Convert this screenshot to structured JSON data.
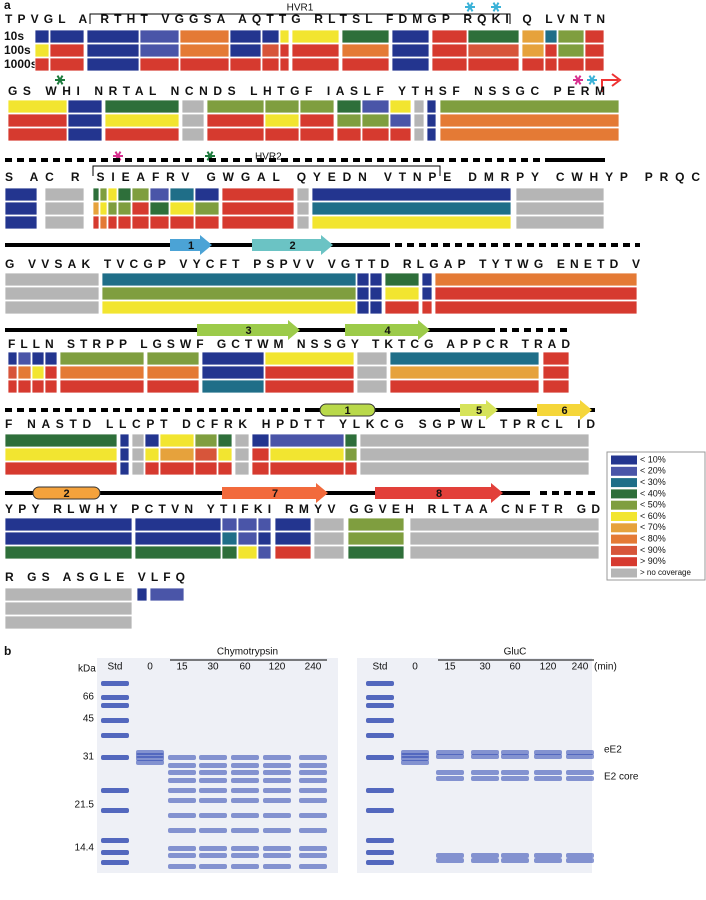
{
  "panel_a": {
    "label": "a",
    "hvr1": "HVR1",
    "hvr2": "HVR2",
    "time_labels": [
      "10s",
      "100s",
      "1000s"
    ],
    "sequence_rows": [
      "TPVGL A RTHT VGGSA AQTTG RLTSL FDMGP RQKI Q LVNTN",
      "GS WHI NRTAL NCNDS LHTGF IASLF YTHSF NSSGC PERM",
      "S AC R SIEAFRV GWGAL QYEDN VTNPE DMRPY CWHYP PRQC",
      "G VVSAK TVCGP VYCFT PSPVV VGTTD RLGAP TYTWG ENETD V",
      "FLLN STRPP LGSWF GCTWM NSSGY TKTCG APPCR TRAD",
      "F NASTD LLCPT DCFRK HPDTT YLKCG SGPWL TPRCL ID",
      "YPY RLWHY PCTVN YTIFKI RMYV GGVEH RLTAA CNFTR GD",
      "R GS ASGLE VLFQ"
    ],
    "strands": [
      "1",
      "2",
      "3",
      "4",
      "5",
      "6",
      "7",
      "8"
    ],
    "helices": [
      "1",
      "2"
    ],
    "legend": [
      "< 10%",
      "< 20%",
      "< 30%",
      "< 40%",
      "< 50%",
      "< 60%",
      "< 70%",
      "< 80%",
      "< 90%",
      "> 90%",
      "> no coverage"
    ]
  },
  "panel_b": {
    "label": "b",
    "kda": "kDa",
    "markers": [
      "66",
      "45",
      "31",
      "21.5",
      "14.4"
    ],
    "gels": [
      {
        "enzyme": "Chymotrypsin",
        "lanes": [
          "Std",
          "0",
          "15",
          "30",
          "60",
          "120",
          "240"
        ]
      },
      {
        "enzyme": "GluC",
        "lanes": [
          "Std",
          "0",
          "15",
          "30",
          "60",
          "120",
          "240"
        ],
        "unit": "(min)"
      }
    ],
    "band_labels": [
      "eE2",
      "E2 core"
    ]
  }
}
